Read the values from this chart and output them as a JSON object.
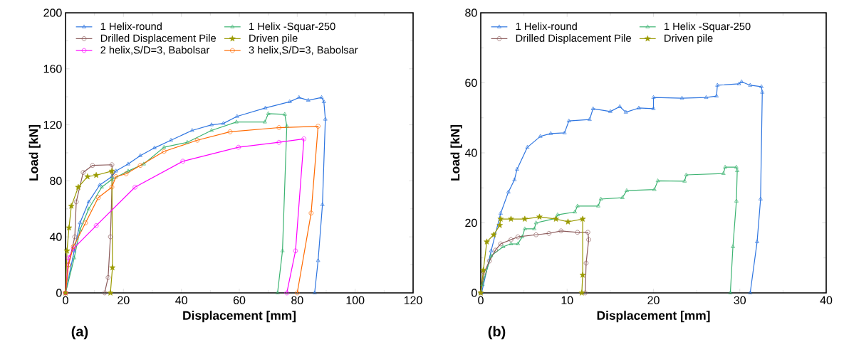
{
  "chart_data": [
    {
      "type": "line",
      "xlabel": "Displacement [mm]",
      "ylabel": "Load [kN]",
      "xlim": [
        0,
        120
      ],
      "ylim": [
        0,
        200
      ],
      "xticks": [
        0,
        20,
        40,
        60,
        80,
        100,
        120
      ],
      "yticks": [
        0,
        40,
        80,
        120,
        160,
        200
      ],
      "legend": "top",
      "grid": false,
      "annotations": [
        "(a)"
      ],
      "series": [
        {
          "name": "1 Helix-round",
          "color": "#2e75e0",
          "marker": "triangle",
          "x": [
            0,
            3,
            5,
            8,
            11.8,
            16,
            17.4,
            21.6,
            25.8,
            30.7,
            36.4,
            43.7,
            50.4,
            54.5,
            59.2,
            69,
            77.4,
            80.6,
            83.8,
            88.4,
            89.2,
            89.7,
            88.7,
            87.2,
            86
          ],
          "values": [
            0,
            30,
            50,
            65,
            77,
            83,
            87,
            92,
            98,
            103.5,
            109,
            116,
            120,
            121,
            126,
            132,
            136.5,
            139.5,
            137.5,
            139.5,
            136.5,
            124,
            63,
            23,
            0
          ]
        },
        {
          "name": "1 Helix -Squar-250",
          "color": "#3cb371",
          "marker": "triangle",
          "x": [
            0,
            3,
            5,
            8,
            12.5,
            16,
            21.6,
            27,
            34,
            42,
            50.4,
            59,
            68.8,
            70,
            75.7,
            76.4,
            74.9,
            73.2
          ],
          "values": [
            0,
            25,
            45,
            60,
            75.5,
            81,
            87,
            92,
            104,
            107.5,
            116,
            122,
            122,
            128,
            127.5,
            119,
            30,
            0
          ]
        },
        {
          "name": "Drilled Displacement Pile",
          "color": "#8b5a5a",
          "marker": "circle",
          "x": [
            0,
            1,
            3.2,
            3.7,
            6.1,
            9.3,
            16,
            16.2,
            15.5,
            14.7,
            13.5
          ],
          "values": [
            0,
            20,
            40,
            65,
            86,
            91,
            91.5,
            86,
            40,
            11,
            0
          ]
        },
        {
          "name": "Driven pile",
          "color": "#9a9a00",
          "marker": "star",
          "x": [
            0,
            0.5,
            1.2,
            2,
            4.4,
            7.6,
            10.6,
            16,
            16.2,
            15.5
          ],
          "values": [
            0,
            30,
            46.5,
            62,
            75.5,
            83,
            84,
            87,
            18,
            0
          ]
        },
        {
          "name": "2 helix,S/D=3, Babolsar",
          "color": "#ff00ff",
          "marker": "circle",
          "x": [
            0,
            1,
            2.7,
            10.6,
            24,
            40.5,
            59.7,
            73.7,
            82.3,
            79.4,
            76.4
          ],
          "values": [
            0,
            25,
            31.5,
            48,
            75.5,
            94,
            104,
            107.5,
            110,
            30,
            0
          ]
        },
        {
          "name": "3 helix,S/D=3, Babolsar",
          "color": "#ff6a00",
          "marker": "circle",
          "x": [
            0,
            1,
            2.7,
            6.9,
            11.3,
            16,
            17.4,
            20.9,
            25.8,
            34,
            45.5,
            56.8,
            73.7,
            87.2,
            84.8,
            80
          ],
          "values": [
            0,
            20,
            33,
            50,
            68,
            75.5,
            83,
            85,
            91,
            101,
            109,
            115,
            118,
            119,
            57,
            0
          ]
        }
      ]
    },
    {
      "type": "line",
      "xlabel": "Displacement [mm]",
      "ylabel": "Load [kN]",
      "xlim": [
        0,
        40
      ],
      "ylim": [
        0,
        80
      ],
      "xticks": [
        0,
        10,
        20,
        30,
        40
      ],
      "yticks": [
        0,
        20,
        40,
        60,
        80
      ],
      "legend": "top",
      "grid": false,
      "annotations": [
        "(b)"
      ],
      "series": [
        {
          "name": "1 Helix-round",
          "color": "#2e75e0",
          "marker": "triangle",
          "x": [
            0.1,
            1.2,
            2.3,
            3.2,
            3.9,
            4.2,
            5.4,
            6.9,
            8.1,
            9.7,
            10.2,
            12.6,
            13,
            15,
            16.1,
            16.8,
            18.3,
            20,
            20,
            23.3,
            26.1,
            27.3,
            27.4,
            29.9,
            30.2,
            31.2,
            32.5,
            32.6,
            32.4,
            32,
            31.2
          ],
          "values": [
            0,
            12,
            22.7,
            28.8,
            32.3,
            35.3,
            41.6,
            44.7,
            45.5,
            45.7,
            49.1,
            49.5,
            52.6,
            51.8,
            53.2,
            51.6,
            52.8,
            52.6,
            55.8,
            55.6,
            55.8,
            56.2,
            59.3,
            59.7,
            60.3,
            59.3,
            58.9,
            57.3,
            26.8,
            14.6,
            0
          ]
        },
        {
          "name": "1 Helix -Squar-250",
          "color": "#3cb371",
          "marker": "triangle",
          "x": [
            0,
            0.2,
            1.2,
            2.6,
            3.5,
            4.3,
            4.8,
            5.1,
            6.2,
            6.4,
            8.7,
            8.9,
            10.9,
            11.2,
            13.6,
            13.9,
            16.4,
            16.9,
            20.1,
            20.5,
            23.6,
            23.8,
            28.1,
            28.3,
            29.6,
            29.7,
            29.6,
            29.2,
            28.9
          ],
          "values": [
            0,
            2.4,
            10.6,
            13.2,
            14,
            14,
            16,
            18.3,
            18.3,
            20,
            21.3,
            22.3,
            23.1,
            24.8,
            24.8,
            26.8,
            27.2,
            29.2,
            29.5,
            32,
            31.9,
            33.7,
            34.1,
            35.9,
            35.9,
            34.9,
            26.2,
            13.2,
            0
          ]
        },
        {
          "name": "Drilled Displacement Pile",
          "color": "#8b5a5a",
          "marker": "circle",
          "x": [
            0,
            0.4,
            1,
            1.7,
            2.3,
            3.5,
            4.3,
            6.4,
            7.9,
            9.3,
            11.2,
            12.4,
            12.5,
            12.2,
            12.1
          ],
          "values": [
            0,
            5.9,
            9.1,
            12.2,
            14,
            15.2,
            16,
            16.6,
            17,
            17.7,
            17.3,
            17.3,
            15.2,
            8.5,
            0
          ]
        },
        {
          "name": "Driven pile",
          "color": "#9a9a00",
          "marker": "star",
          "x": [
            0,
            0.3,
            0.7,
            1.5,
            2.2,
            2.3,
            3.5,
            5.1,
            6.8,
            8.7,
            10.1,
            11.8,
            11.8,
            11.7
          ],
          "values": [
            0,
            6.5,
            14.6,
            16.6,
            19.3,
            21.1,
            21.1,
            21.1,
            21.7,
            21.1,
            20.3,
            21.1,
            5.1,
            0
          ]
        }
      ]
    }
  ]
}
